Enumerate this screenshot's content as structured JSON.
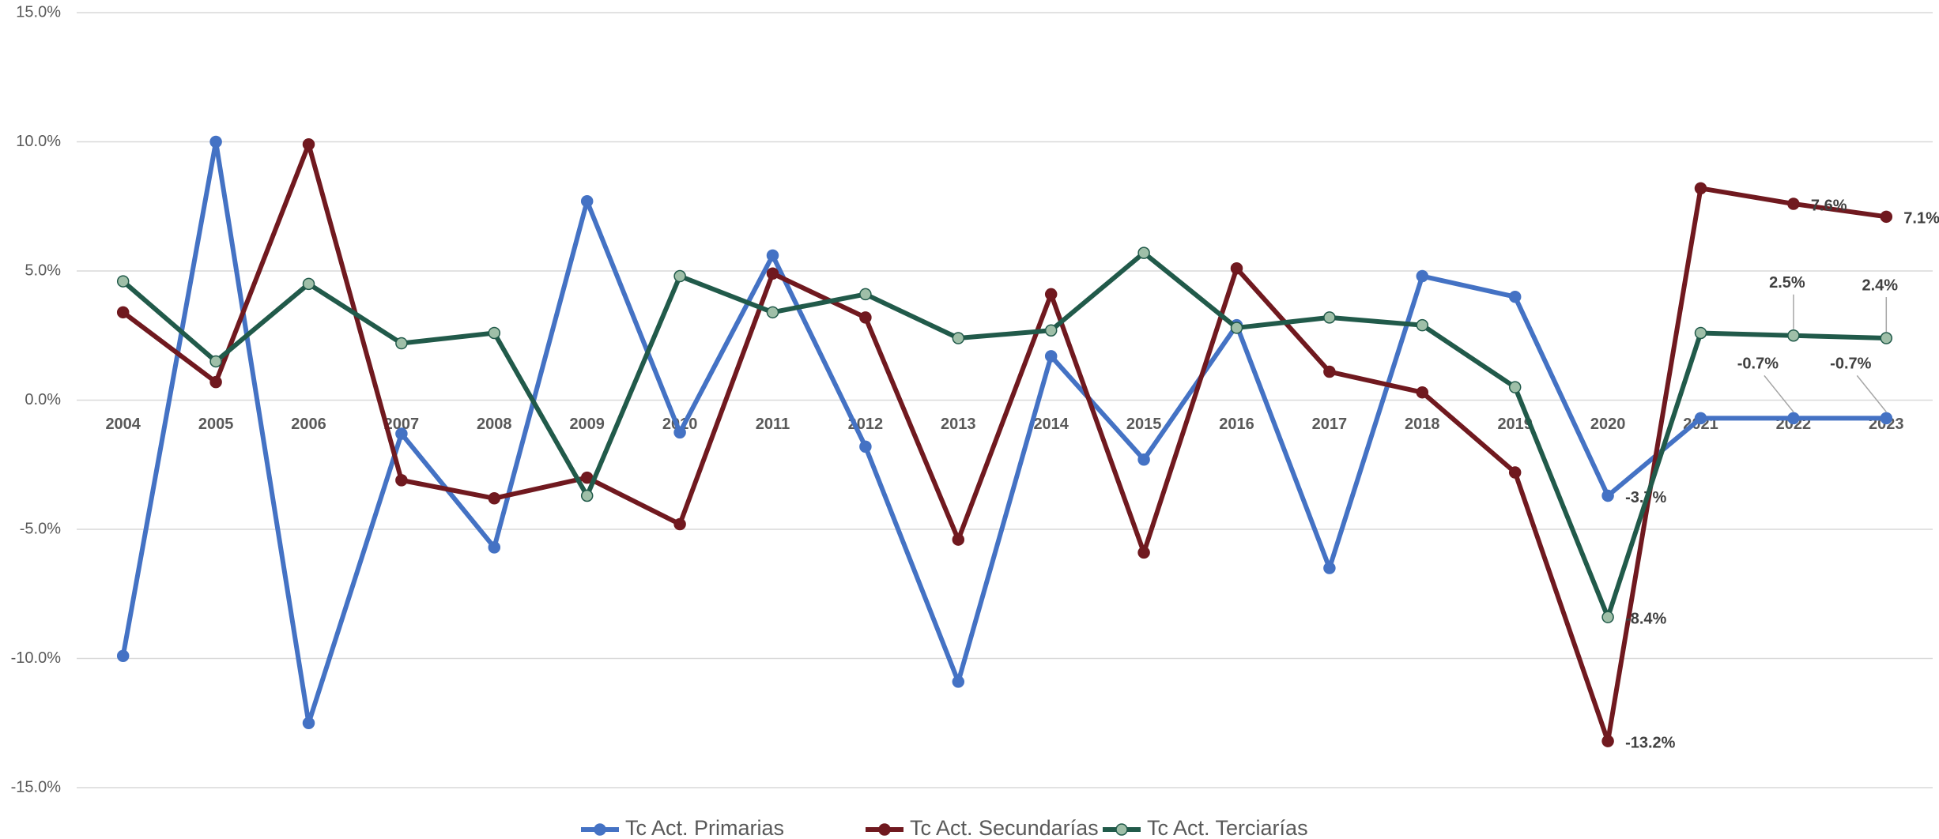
{
  "chart_data": {
    "type": "line",
    "categories": [
      "2004",
      "2005",
      "2006",
      "2007",
      "2008",
      "2009",
      "2010",
      "2011",
      "2012",
      "2013",
      "2014",
      "2015",
      "2016",
      "2017",
      "2018",
      "2019",
      "2020",
      "2021",
      "2022",
      "2023"
    ],
    "series": [
      {
        "name": "Tc Act. Primarias",
        "color": "#4472c4",
        "marker_fill": "#4472c4",
        "values": [
          -9.9,
          10.0,
          -12.5,
          -1.3,
          -5.7,
          7.7,
          -1.25,
          5.6,
          -1.8,
          -10.9,
          1.7,
          -2.3,
          2.9,
          -6.5,
          4.8,
          4.0,
          -3.7,
          -0.7,
          -0.7,
          -0.7
        ],
        "value_labels": [
          null,
          null,
          null,
          null,
          null,
          null,
          null,
          null,
          null,
          null,
          null,
          null,
          null,
          null,
          null,
          null,
          "-3.7%",
          null,
          "-0.7%",
          "-0.7%"
        ]
      },
      {
        "name": "Tc Act. Secundarías",
        "color": "#70191f",
        "marker_fill": "#70191f",
        "values": [
          3.4,
          0.7,
          9.9,
          -3.1,
          -3.8,
          -3.0,
          -4.8,
          4.9,
          3.2,
          -5.4,
          4.1,
          -5.9,
          5.1,
          1.1,
          0.3,
          -2.8,
          -13.2,
          8.2,
          7.6,
          7.1
        ],
        "value_labels": [
          null,
          null,
          null,
          null,
          null,
          null,
          null,
          null,
          null,
          null,
          null,
          null,
          null,
          null,
          null,
          null,
          "-13.2%",
          null,
          "7.6%",
          "7.1%"
        ]
      },
      {
        "name": "Tc Act. Terciarías",
        "color": "#215a4a",
        "marker_fill": "#9fbfa8",
        "values": [
          4.6,
          1.5,
          4.5,
          2.2,
          2.6,
          -3.7,
          4.8,
          3.4,
          4.1,
          2.4,
          2.7,
          5.7,
          2.8,
          3.2,
          2.9,
          0.5,
          -8.4,
          2.6,
          2.5,
          2.4
        ],
        "value_labels": [
          null,
          null,
          null,
          null,
          null,
          null,
          null,
          null,
          null,
          null,
          null,
          null,
          null,
          null,
          null,
          null,
          "-8.4%",
          null,
          "2.5%",
          "2.4%"
        ]
      }
    ],
    "ylim": [
      -15,
      15
    ],
    "yticks": [
      {
        "value": -15,
        "label": "-15.0%"
      },
      {
        "value": -10,
        "label": "-10.0%"
      },
      {
        "value": -5,
        "label": "-5.0%"
      },
      {
        "value": 0,
        "label": "0.0%"
      },
      {
        "value": 5,
        "label": "5.0%"
      },
      {
        "value": 10,
        "label": "10.0%"
      },
      {
        "value": 15,
        "label": "15.0%"
      }
    ],
    "grid": true,
    "legend": "bottom"
  }
}
